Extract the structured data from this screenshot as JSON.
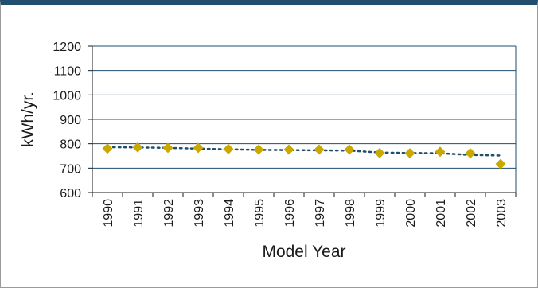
{
  "chart_data": {
    "type": "scatter",
    "title": "",
    "xlabel": "Model Year",
    "ylabel": "kWh/yr.",
    "categories": [
      "1990",
      "1991",
      "1992",
      "1993",
      "1994",
      "1995",
      "1996",
      "1997",
      "1998",
      "1999",
      "2000",
      "2001",
      "2002",
      "2003"
    ],
    "series": [
      {
        "values": [
          780,
          785,
          783,
          783,
          778,
          776,
          776,
          776,
          776,
          762,
          761,
          767,
          761,
          717
        ]
      },
      {
        "values": [
          786,
          785,
          783,
          780,
          777,
          775,
          774,
          773,
          772,
          764,
          762,
          761,
          754,
          752
        ]
      }
    ],
    "yticks": [
      "600",
      "700",
      "800",
      "900",
      "1000",
      "1100",
      "1200"
    ],
    "ylim": [
      600,
      1200
    ],
    "grid": true,
    "legend": "none",
    "colors": {
      "marker": "#c9a800",
      "trend": "#1f4e6e",
      "grid": "#1f4e6e",
      "frame_top": "#1f4e6e"
    }
  }
}
